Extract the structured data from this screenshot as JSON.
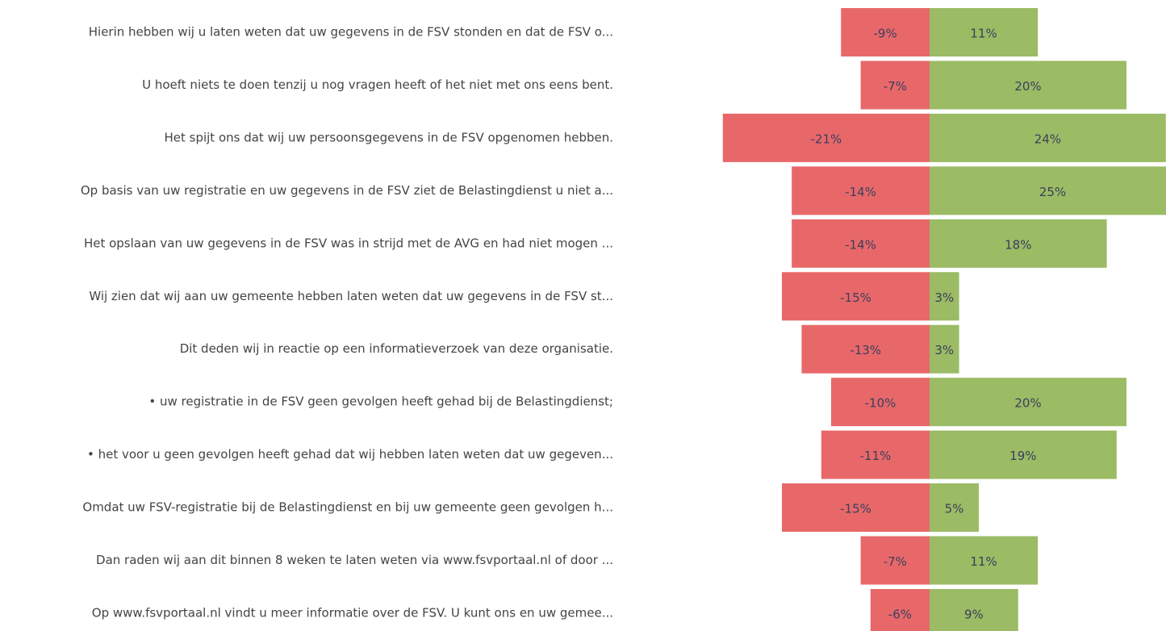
{
  "chart_data": {
    "type": "diverging-bar",
    "categories": [
      "Hierin hebben wij u laten weten dat uw gegevens in de FSV stonden en dat de FSV o...",
      "U hoeft niets te doen tenzij u nog vragen heeft of het niet met ons eens bent.",
      "Het spijt ons dat wij uw persoonsgegevens in de FSV opgenomen hebben.",
      "Op basis van uw registratie en uw gegevens in de FSV ziet de Belastingdienst u niet a...",
      "Het opslaan van uw gegevens in de FSV was in strijd met de AVG en had niet mogen ...",
      "Wij zien dat wij aan uw gemeente hebben laten weten dat uw gegevens in de FSV st...",
      "Dit deden wij in reactie op een informatieverzoek van deze organisatie.",
      "• uw registratie in de FSV geen gevolgen heeft gehad bij de Belastingdienst;",
      "• het voor u geen gevolgen heeft gehad dat wij hebben laten weten dat uw gegeven...",
      "Omdat uw FSV-registratie bij de Belastingdienst en bij uw gemeente geen gevolgen h...",
      "Dan raden wij aan dit binnen 8 weken te laten weten via www.fsvportaal.nl of door ...",
      "Op www.fsvportaal.nl vindt u meer informatie over de FSV. U kunt ons en uw gemee..."
    ],
    "series": [
      {
        "color": "#e8686a",
        "values": [
          -9,
          -7,
          -21,
          -14,
          -14,
          -15,
          -13,
          -10,
          -11,
          -15,
          -7,
          -6
        ],
        "value_labels": [
          "-9%",
          "-7%",
          "-21%",
          "-14%",
          "-14%",
          "-15%",
          "-13%",
          "-10%",
          "-11%",
          "-15%",
          "-7%",
          "-6%"
        ]
      },
      {
        "color": "#9bbb64",
        "values": [
          11,
          20,
          24,
          25,
          18,
          3,
          3,
          20,
          19,
          5,
          11,
          9
        ],
        "value_labels": [
          "11%",
          "20%",
          "24%",
          "25%",
          "18%",
          "3%",
          "3%",
          "20%",
          "19%",
          "5%",
          "11%",
          "9%"
        ]
      }
    ]
  }
}
